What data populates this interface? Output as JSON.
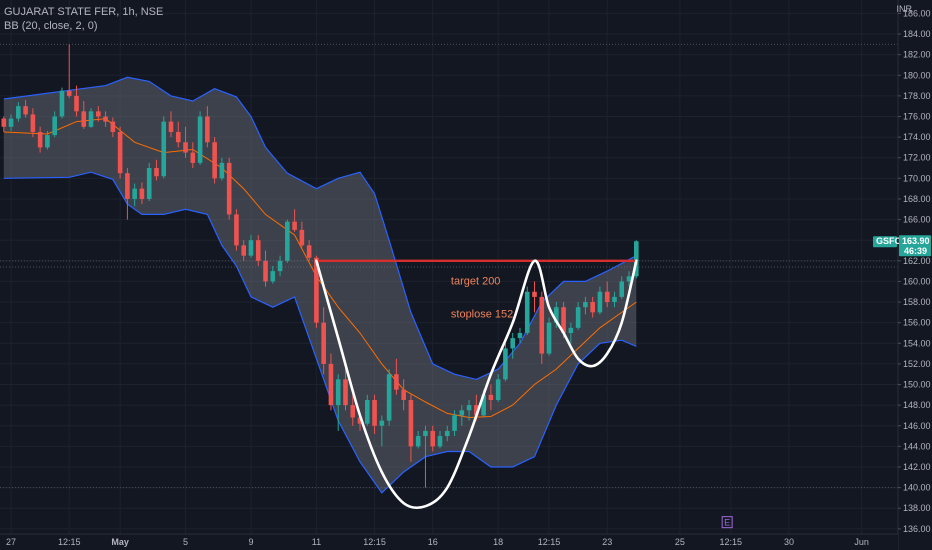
{
  "legend": {
    "symbol_line": "GUJARAT STATE FER, 1h, NSE",
    "indicator_line": "BB (20, close, 2, 0)"
  },
  "currency": "INR",
  "price_tag": {
    "symbol": "GSFC",
    "price": "163.90",
    "countdown": "46:39"
  },
  "colors": {
    "background": "#131722",
    "up": "#26a69a",
    "down": "#ef5350",
    "band_line": "#2962ff",
    "band_fill": "#787b86",
    "basis": "#ff6d00",
    "drawing": "#ffffff",
    "target_line": "#d32f2f",
    "annotation": "#f0825a",
    "price_tag": "#26a69a"
  },
  "chart_data": {
    "type": "candlestick",
    "title": "GUJARAT STATE FER, 1h, NSE",
    "indicator": "BB (20, close, 2, 0)",
    "y_axis": {
      "ticks": [
        136,
        138,
        140,
        142,
        144,
        146,
        148,
        150,
        152,
        154,
        156,
        158,
        160,
        162,
        164,
        166,
        168,
        170,
        172,
        174,
        176,
        178,
        180,
        182,
        184,
        186
      ],
      "tick_labels": [
        "136.00",
        "138.00",
        "140.00",
        "142.00",
        "144.00",
        "146.00",
        "148.00",
        "150.00",
        "152.00",
        "154.00",
        "156.00",
        "158.00",
        "160.00",
        "162.00",
        "164.00",
        "166.00",
        "168.00",
        "170.00",
        "172.00",
        "174.00",
        "176.00",
        "178.00",
        "180.00",
        "182.00",
        "184.00",
        "186.00"
      ],
      "range": [
        135.5,
        187.3
      ]
    },
    "x_axis": {
      "labels": [
        {
          "label": "27",
          "index": 1
        },
        {
          "label": "12:15",
          "index": 9
        },
        {
          "label": "May",
          "index": 16,
          "bold": true
        },
        {
          "label": "5",
          "index": 25
        },
        {
          "label": "9",
          "index": 34
        },
        {
          "label": "11",
          "index": 43
        },
        {
          "label": "12:15",
          "index": 51
        },
        {
          "label": "16",
          "index": 59
        },
        {
          "label": "18",
          "index": 68
        },
        {
          "label": "12:15",
          "index": 75
        },
        {
          "label": "23",
          "index": 83
        },
        {
          "label": "25",
          "index": 93
        },
        {
          "label": "12:15",
          "index": 100
        },
        {
          "label": "30",
          "index": 108
        },
        {
          "label": "Jun",
          "index": 118
        }
      ],
      "range": [
        0,
        125
      ]
    },
    "candles": [
      [
        175.8,
        176.0,
        174.5,
        175.0
      ],
      [
        175.0,
        176.2,
        174.6,
        175.8
      ],
      [
        175.8,
        177.4,
        175.5,
        177.0
      ],
      [
        177.0,
        177.6,
        175.9,
        176.2
      ],
      [
        176.2,
        176.8,
        174.0,
        174.5
      ],
      [
        174.5,
        175.0,
        172.5,
        173.0
      ],
      [
        173.0,
        174.6,
        172.8,
        174.2
      ],
      [
        174.2,
        176.5,
        174.0,
        176.0
      ],
      [
        176.0,
        178.8,
        175.8,
        178.5
      ],
      [
        178.5,
        183.0,
        177.8,
        178.0
      ],
      [
        178.0,
        179.0,
        176.0,
        176.5
      ],
      [
        176.5,
        177.5,
        174.8,
        175.0
      ],
      [
        175.0,
        176.8,
        174.9,
        176.5
      ],
      [
        176.5,
        177.0,
        175.5,
        176.0
      ],
      [
        176.0,
        176.5,
        175.0,
        175.5
      ],
      [
        175.5,
        175.9,
        174.0,
        174.5
      ],
      [
        174.5,
        175.0,
        170.0,
        170.5
      ],
      [
        170.5,
        171.0,
        166.0,
        168.0
      ],
      [
        168.0,
        169.5,
        167.3,
        169.0
      ],
      [
        169.0,
        169.6,
        167.5,
        168.0
      ],
      [
        168.0,
        171.5,
        167.8,
        171.0
      ],
      [
        171.0,
        171.8,
        169.8,
        170.2
      ],
      [
        170.2,
        176.0,
        170.0,
        175.5
      ],
      [
        175.5,
        176.5,
        174.0,
        174.5
      ],
      [
        174.5,
        175.5,
        173.0,
        173.5
      ],
      [
        173.5,
        175.0,
        172.0,
        172.5
      ],
      [
        172.5,
        173.5,
        171.0,
        171.5
      ],
      [
        171.5,
        176.5,
        171.3,
        176.0
      ],
      [
        176.0,
        177.0,
        173.0,
        173.5
      ],
      [
        173.5,
        174.0,
        169.5,
        170.0
      ],
      [
        170.0,
        172.0,
        169.8,
        171.5
      ],
      [
        171.5,
        172.0,
        166.0,
        166.5
      ],
      [
        166.5,
        167.0,
        163.0,
        163.5
      ],
      [
        163.5,
        164.0,
        162.0,
        162.5
      ],
      [
        162.5,
        164.5,
        162.3,
        164.0
      ],
      [
        164.0,
        164.5,
        161.5,
        162.0
      ],
      [
        162.0,
        163.0,
        159.5,
        160.0
      ],
      [
        160.0,
        161.5,
        159.8,
        161.0
      ],
      [
        161.0,
        162.5,
        160.5,
        162.0
      ],
      [
        162.0,
        166.0,
        161.8,
        165.8
      ],
      [
        165.8,
        167.0,
        164.8,
        165.0
      ],
      [
        165.0,
        165.8,
        163.3,
        163.5
      ],
      [
        163.5,
        164.0,
        162.0,
        162.3
      ],
      [
        162.3,
        162.5,
        155.5,
        156.0
      ],
      [
        156.0,
        157.5,
        151.0,
        152.0
      ],
      [
        152.0,
        153.0,
        147.5,
        148.0
      ],
      [
        148.0,
        151.0,
        145.5,
        150.5
      ],
      [
        150.5,
        151.5,
        147.5,
        148.0
      ],
      [
        148.0,
        149.0,
        146.0,
        146.8
      ],
      [
        146.8,
        147.0,
        145.5,
        146.2
      ],
      [
        146.2,
        149.0,
        146.0,
        148.5
      ],
      [
        148.5,
        149.0,
        145.2,
        146.0
      ],
      [
        146.0,
        147.0,
        144.0,
        146.5
      ],
      [
        146.5,
        151.5,
        146.0,
        151.0
      ],
      [
        151.0,
        152.5,
        149.0,
        149.5
      ],
      [
        149.5,
        150.5,
        147.5,
        148.5
      ],
      [
        148.5,
        149.0,
        142.5,
        144.0
      ],
      [
        144.0,
        145.5,
        143.8,
        145.0
      ],
      [
        145.0,
        146.0,
        140.0,
        145.5
      ],
      [
        145.5,
        146.0,
        143.5,
        144.0
      ],
      [
        144.0,
        145.5,
        143.8,
        145.0
      ],
      [
        145.0,
        146.0,
        144.5,
        145.5
      ],
      [
        145.5,
        147.5,
        145.0,
        147.0
      ],
      [
        147.0,
        148.0,
        146.0,
        147.5
      ],
      [
        147.5,
        148.5,
        146.5,
        148.0
      ],
      [
        148.0,
        149.0,
        146.5,
        147.0
      ],
      [
        147.0,
        149.5,
        146.8,
        149.0
      ],
      [
        149.0,
        150.0,
        147.5,
        148.5
      ],
      [
        148.5,
        151.0,
        148.3,
        150.5
      ],
      [
        150.5,
        154.0,
        150.3,
        153.5
      ],
      [
        153.5,
        155.0,
        152.5,
        154.5
      ],
      [
        154.5,
        155.5,
        154.0,
        155.0
      ],
      [
        155.0,
        159.5,
        154.8,
        159.0
      ],
      [
        159.0,
        160.0,
        157.0,
        158.5
      ],
      [
        158.5,
        159.0,
        152.0,
        153.0
      ],
      [
        153.0,
        156.5,
        152.8,
        156.0
      ],
      [
        156.0,
        158.0,
        155.5,
        157.5
      ],
      [
        157.5,
        158.0,
        154.5,
        155.0
      ],
      [
        155.0,
        156.0,
        154.0,
        155.5
      ],
      [
        155.5,
        158.0,
        155.3,
        157.5
      ],
      [
        157.5,
        158.5,
        156.8,
        158.0
      ],
      [
        158.0,
        158.5,
        156.5,
        157.0
      ],
      [
        157.0,
        159.5,
        156.8,
        159.0
      ],
      [
        159.0,
        160.0,
        157.5,
        158.0
      ],
      [
        158.0,
        159.0,
        157.5,
        158.5
      ],
      [
        158.5,
        160.5,
        158.3,
        160.0
      ],
      [
        160.0,
        161.0,
        159.5,
        160.5
      ],
      [
        160.5,
        164.0,
        160.3,
        163.9
      ]
    ],
    "bollinger": {
      "upper_points": [
        [
          0,
          177.7
        ],
        [
          14,
          179.0
        ],
        [
          17,
          179.8
        ],
        [
          20,
          179.4
        ],
        [
          23,
          178.0
        ],
        [
          26,
          177.5
        ],
        [
          29,
          178.7
        ],
        [
          32,
          177.9
        ],
        [
          34,
          176.0
        ],
        [
          36,
          173.0
        ],
        [
          39,
          170.5
        ],
        [
          43,
          169.0
        ],
        [
          46,
          170.0
        ],
        [
          49,
          170.6
        ],
        [
          51,
          168.5
        ],
        [
          53,
          164.0
        ],
        [
          56,
          157.0
        ],
        [
          59,
          152.0
        ],
        [
          62,
          151.0
        ],
        [
          65,
          150.5
        ],
        [
          68,
          151.5
        ],
        [
          71,
          154.0
        ],
        [
          74,
          158.0
        ],
        [
          77,
          160.0
        ],
        [
          80,
          160.0
        ],
        [
          83,
          161.0
        ],
        [
          87,
          162.5
        ]
      ],
      "lower_points": [
        [
          0,
          170.0
        ],
        [
          9,
          170.1
        ],
        [
          12,
          170.6
        ],
        [
          15,
          169.9
        ],
        [
          17,
          167.5
        ],
        [
          19,
          166.5
        ],
        [
          22,
          166.5
        ],
        [
          25,
          167.0
        ],
        [
          28,
          166.5
        ],
        [
          30,
          163.5
        ],
        [
          32,
          161.5
        ],
        [
          34,
          158.5
        ],
        [
          37,
          157.5
        ],
        [
          40,
          158.5
        ],
        [
          43,
          152.5
        ],
        [
          46,
          146.5
        ],
        [
          49,
          142.5
        ],
        [
          52,
          139.5
        ],
        [
          55,
          141.5
        ],
        [
          58,
          143.0
        ],
        [
          61,
          143.5
        ],
        [
          64,
          143.5
        ],
        [
          67,
          142.0
        ],
        [
          70,
          142.0
        ],
        [
          73,
          143.0
        ],
        [
          76,
          148.0
        ],
        [
          79,
          152.0
        ],
        [
          82,
          154.0
        ],
        [
          85,
          154.3
        ],
        [
          87,
          153.7
        ]
      ],
      "basis_points": [
        [
          0,
          174.5
        ],
        [
          6,
          174.3
        ],
        [
          10,
          175.5
        ],
        [
          14,
          175.8
        ],
        [
          18,
          173.5
        ],
        [
          22,
          172.5
        ],
        [
          26,
          172.8
        ],
        [
          30,
          171.0
        ],
        [
          33,
          169.0
        ],
        [
          36,
          166.5
        ],
        [
          40,
          164.5
        ],
        [
          43,
          160.5
        ],
        [
          46,
          157.5
        ],
        [
          49,
          155.0
        ],
        [
          52,
          152.0
        ],
        [
          55,
          149.5
        ],
        [
          58,
          148.3
        ],
        [
          61,
          147.2
        ],
        [
          64,
          146.8
        ],
        [
          67,
          146.9
        ],
        [
          70,
          148.0
        ],
        [
          73,
          150.0
        ],
        [
          76,
          151.5
        ],
        [
          79,
          153.5
        ],
        [
          82,
          155.5
        ],
        [
          85,
          157.0
        ],
        [
          87,
          158.0
        ]
      ]
    },
    "horizontal_lines": [
      183.0,
      162.0,
      161.4,
      140.0
    ],
    "target_line": {
      "price": 162.0,
      "from_index": 43,
      "to_index": 87
    },
    "cup_handle": [
      [
        43,
        162.0
      ],
      [
        46,
        154.5
      ],
      [
        49,
        147.0
      ],
      [
        52,
        141.5
      ],
      [
        55,
        138.5
      ],
      [
        58,
        138.2
      ],
      [
        61,
        140.0
      ],
      [
        64,
        145.0
      ],
      [
        67,
        151.0
      ],
      [
        70,
        156.0
      ],
      [
        73,
        162.0
      ],
      [
        75,
        157.5
      ],
      [
        77,
        155.0
      ],
      [
        79,
        152.5
      ],
      [
        81,
        151.8
      ],
      [
        83,
        153.0
      ],
      [
        85,
        156.0
      ],
      [
        87,
        162.0
      ]
    ],
    "annotations": [
      {
        "text": "target 200",
        "index": 61.5,
        "price": 159.7
      },
      {
        "text": "stoplose 152",
        "index": 61.5,
        "price": 156.5
      }
    ],
    "event_marker": {
      "label": "E",
      "index": 99.5,
      "price": 136.6
    }
  }
}
